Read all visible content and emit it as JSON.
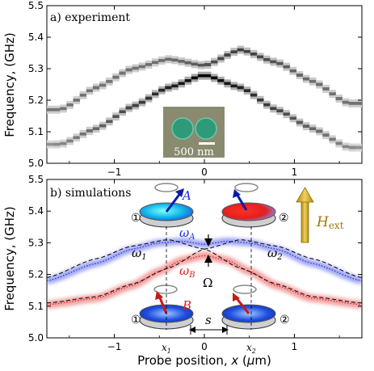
{
  "chart_data": [
    {
      "type": "heatmap",
      "panel_label": "a) experiment",
      "ylabel": "Frequency, (GHz)",
      "ylim": [
        5.0,
        5.5
      ],
      "xlim": [
        -1.75,
        1.75
      ],
      "xticks": [
        "−1",
        "0",
        "1"
      ],
      "yticks": [
        "5.0",
        "5.1",
        "5.2",
        "5.3",
        "5.4",
        "5.5"
      ],
      "inset_scale_label": "500 nm",
      "colormap": "grayscale (black = high)",
      "modes": [
        {
          "x": [
            -1.6,
            -1.2,
            -0.8,
            -0.4,
            0.0,
            0.4,
            0.8,
            1.2,
            1.6
          ],
          "y": [
            5.17,
            5.24,
            5.3,
            5.33,
            5.31,
            5.36,
            5.32,
            5.26,
            5.19
          ]
        },
        {
          "x": [
            -1.6,
            -1.2,
            -0.8,
            -0.4,
            0.0,
            0.4,
            0.8,
            1.2,
            1.6
          ],
          "y": [
            5.06,
            5.11,
            5.18,
            5.24,
            5.28,
            5.24,
            5.17,
            5.11,
            5.05
          ]
        }
      ]
    },
    {
      "type": "line",
      "panel_label": "b) simulations",
      "xlabel": "Probe position, x (μm)",
      "ylabel": "Frequency, (GHz)",
      "ylim": [
        5.0,
        5.5
      ],
      "xlim": [
        -1.75,
        1.75
      ],
      "xticks": [
        "−1",
        "0",
        "1"
      ],
      "yticks": [
        "5.0",
        "5.1",
        "5.2",
        "5.3",
        "5.4",
        "5.5"
      ],
      "field_label": "H",
      "field_label_sub": "ext",
      "mode_labels": {
        "A": "A",
        "B": "B",
        "omega_A": "ω",
        "omega_A_sub": "A",
        "omega_B": "ω",
        "omega_B_sub": "B",
        "omega_1": "ω",
        "omega_1_sub": "1",
        "omega_2": "ω",
        "omega_2_sub": "2",
        "gap": "Ω",
        "spacing": "s",
        "x1": "x",
        "x1_sub": "1",
        "x2": "x",
        "x2_sub": "2"
      },
      "disk_numbers": [
        "①",
        "②",
        "①",
        "②"
      ],
      "series": [
        {
          "name": "ω_A",
          "color": "#3040e0",
          "x": [
            -1.75,
            -1.2,
            -0.8,
            -0.5,
            -0.25,
            0.0,
            0.25,
            0.5,
            0.8,
            1.2,
            1.75
          ],
          "y": [
            5.18,
            5.235,
            5.28,
            5.3,
            5.305,
            5.295,
            5.305,
            5.3,
            5.28,
            5.235,
            5.18
          ]
        },
        {
          "name": "ω_B",
          "color": "#e03030",
          "x": [
            -1.75,
            -1.2,
            -0.8,
            -0.5,
            -0.25,
            0.0,
            0.25,
            0.5,
            0.8,
            1.2,
            1.75
          ],
          "y": [
            5.105,
            5.125,
            5.165,
            5.21,
            5.245,
            5.26,
            5.245,
            5.21,
            5.165,
            5.125,
            5.105
          ]
        },
        {
          "name": "ω_1",
          "color": "#000000",
          "x": [
            -1.75,
            -1.2,
            -0.8,
            -0.4,
            0.0,
            0.4,
            0.8,
            1.2,
            1.75
          ],
          "y": [
            5.19,
            5.25,
            5.29,
            5.31,
            5.28,
            5.22,
            5.17,
            5.13,
            5.11
          ]
        },
        {
          "name": "ω_2",
          "color": "#000000",
          "x": [
            -1.75,
            -1.2,
            -0.8,
            -0.4,
            0.0,
            0.4,
            0.8,
            1.2,
            1.75
          ],
          "y": [
            5.11,
            5.13,
            5.17,
            5.22,
            5.28,
            5.31,
            5.29,
            5.25,
            5.19
          ]
        }
      ]
    }
  ]
}
